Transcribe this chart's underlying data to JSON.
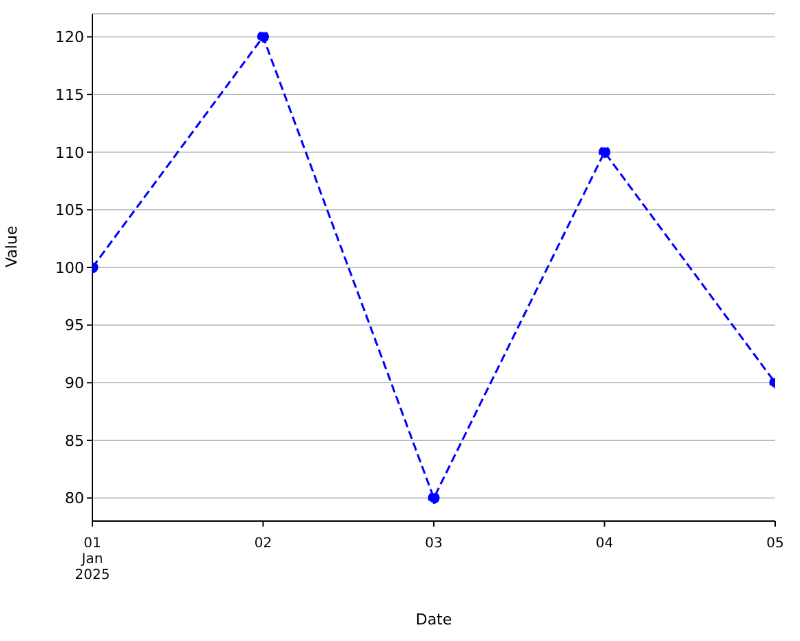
{
  "chart_data": {
    "type": "line",
    "xlabel": "Date",
    "ylabel": "Value",
    "x": [
      "2025-01-01",
      "2025-01-02",
      "2025-01-03",
      "2025-01-04",
      "2025-01-05"
    ],
    "series": [
      {
        "color": "#0000ff",
        "values": [
          100,
          120,
          80,
          110,
          90
        ]
      }
    ],
    "xlim": [
      "2025-01-01",
      "2025-01-05"
    ],
    "xticks": [
      {
        "value": "2025-01-01",
        "label": "01\nJan\n2025"
      },
      {
        "value": "2025-01-02",
        "label": "02"
      },
      {
        "value": "2025-01-03",
        "label": "03"
      },
      {
        "value": "2025-01-04",
        "label": "04"
      },
      {
        "value": "2025-01-05",
        "label": "05"
      }
    ],
    "ylim": [
      78,
      122
    ],
    "yticks": [
      80,
      85,
      90,
      95,
      100,
      105,
      110,
      115,
      120
    ],
    "grid": "y",
    "marker": "circle",
    "line_style": "dashed",
    "legend": false
  }
}
